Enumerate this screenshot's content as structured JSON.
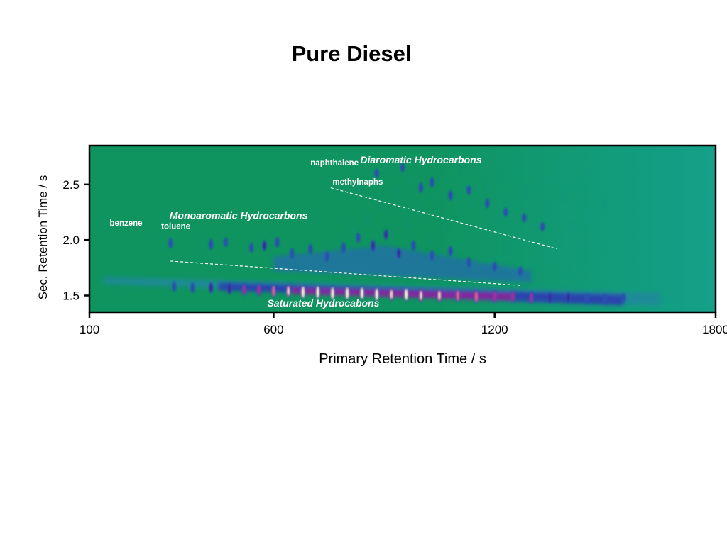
{
  "slide": {
    "title": "Pure Diesel"
  },
  "chart_data": {
    "type": "heatmap",
    "title": "Pure Diesel",
    "xlabel": "Primary Retention Time / s",
    "ylabel": "Sec. Retention Time / s",
    "xlim": [
      100,
      1800
    ],
    "ylim": [
      1.35,
      2.85
    ],
    "xticks": [
      100,
      600,
      1200,
      1800
    ],
    "yticks": [
      1.5,
      2.0,
      2.5
    ],
    "xtick_labels": [
      "100",
      "600",
      "1200",
      "1800"
    ],
    "ytick_labels": [
      "1.5",
      "2.0",
      "2.5"
    ],
    "grid": false,
    "colormap": [
      "#0f9460",
      "#1e8a9a",
      "#2a4fb0",
      "#3a1f9a",
      "#b0209a",
      "#f06088",
      "#fff6c0"
    ],
    "background_color": "#0f9460",
    "annotations": [
      {
        "text": "benzene",
        "x": 155,
        "y": 2.13,
        "style": "label"
      },
      {
        "text": "toluene",
        "x": 295,
        "y": 2.1,
        "style": "label"
      },
      {
        "text": "naphthalene",
        "x": 700,
        "y": 2.67,
        "style": "label"
      },
      {
        "text": "methylnaphs",
        "x": 760,
        "y": 2.5,
        "style": "label"
      },
      {
        "text": "Monoaromatic Hydrocarbons",
        "x": 505,
        "y": 2.19,
        "style": "region"
      },
      {
        "text": "Diaromatic Hydrocarbons",
        "x": 1000,
        "y": 2.69,
        "style": "region"
      },
      {
        "text": "Saturated Hydrocabons",
        "x": 735,
        "y": 1.4,
        "style": "region"
      }
    ],
    "divider_lines": [
      {
        "x": [
          320,
          1275
        ],
        "y": [
          1.81,
          1.59
        ]
      },
      {
        "x": [
          755,
          1370
        ],
        "y": [
          2.47,
          1.92
        ]
      }
    ],
    "series": [
      {
        "name": "Saturated Hydrocabons",
        "band": {
          "x_start": 140,
          "x_end": 1650,
          "y_start": 1.63,
          "y_end": 1.46
        },
        "peaks": [
          {
            "x": 330,
            "y": 1.58,
            "intensity": 0.45
          },
          {
            "x": 380,
            "y": 1.57,
            "intensity": 0.5
          },
          {
            "x": 430,
            "y": 1.57,
            "intensity": 0.55
          },
          {
            "x": 480,
            "y": 1.56,
            "intensity": 0.65
          },
          {
            "x": 520,
            "y": 1.55,
            "intensity": 0.7
          },
          {
            "x": 560,
            "y": 1.55,
            "intensity": 0.75
          },
          {
            "x": 600,
            "y": 1.54,
            "intensity": 0.85
          },
          {
            "x": 640,
            "y": 1.54,
            "intensity": 0.9
          },
          {
            "x": 680,
            "y": 1.53,
            "intensity": 0.95
          },
          {
            "x": 720,
            "y": 1.53,
            "intensity": 1.0
          },
          {
            "x": 760,
            "y": 1.52,
            "intensity": 1.0
          },
          {
            "x": 800,
            "y": 1.52,
            "intensity": 1.0
          },
          {
            "x": 840,
            "y": 1.52,
            "intensity": 0.95
          },
          {
            "x": 880,
            "y": 1.51,
            "intensity": 1.0
          },
          {
            "x": 920,
            "y": 1.51,
            "intensity": 0.9
          },
          {
            "x": 960,
            "y": 1.51,
            "intensity": 0.95
          },
          {
            "x": 1000,
            "y": 1.5,
            "intensity": 0.9
          },
          {
            "x": 1050,
            "y": 1.5,
            "intensity": 0.9
          },
          {
            "x": 1100,
            "y": 1.5,
            "intensity": 0.85
          },
          {
            "x": 1150,
            "y": 1.49,
            "intensity": 0.85
          },
          {
            "x": 1200,
            "y": 1.49,
            "intensity": 0.8
          },
          {
            "x": 1250,
            "y": 1.49,
            "intensity": 0.75
          },
          {
            "x": 1300,
            "y": 1.48,
            "intensity": 0.7
          },
          {
            "x": 1350,
            "y": 1.48,
            "intensity": 0.6
          },
          {
            "x": 1400,
            "y": 1.48,
            "intensity": 0.55
          },
          {
            "x": 1450,
            "y": 1.47,
            "intensity": 0.45
          },
          {
            "x": 1500,
            "y": 1.47,
            "intensity": 0.4
          },
          {
            "x": 1550,
            "y": 1.48,
            "intensity": 0.3
          }
        ]
      },
      {
        "name": "Monoaromatic Hydrocarbons",
        "peaks": [
          {
            "x": 320,
            "y": 1.97,
            "intensity": 0.4
          },
          {
            "x": 430,
            "y": 1.96,
            "intensity": 0.5
          },
          {
            "x": 470,
            "y": 1.98,
            "intensity": 0.35
          },
          {
            "x": 540,
            "y": 1.93,
            "intensity": 0.4
          },
          {
            "x": 575,
            "y": 1.95,
            "intensity": 0.55
          },
          {
            "x": 610,
            "y": 1.98,
            "intensity": 0.5
          },
          {
            "x": 650,
            "y": 1.88,
            "intensity": 0.5
          },
          {
            "x": 700,
            "y": 1.92,
            "intensity": 0.45
          },
          {
            "x": 745,
            "y": 1.85,
            "intensity": 0.5
          },
          {
            "x": 790,
            "y": 1.93,
            "intensity": 0.5
          },
          {
            "x": 830,
            "y": 2.02,
            "intensity": 0.45
          },
          {
            "x": 870,
            "y": 1.95,
            "intensity": 0.65
          },
          {
            "x": 905,
            "y": 2.05,
            "intensity": 0.55
          },
          {
            "x": 940,
            "y": 1.88,
            "intensity": 0.55
          },
          {
            "x": 980,
            "y": 1.95,
            "intensity": 0.5
          },
          {
            "x": 1030,
            "y": 1.86,
            "intensity": 0.5
          },
          {
            "x": 1080,
            "y": 1.9,
            "intensity": 0.45
          },
          {
            "x": 1130,
            "y": 1.8,
            "intensity": 0.45
          },
          {
            "x": 1200,
            "y": 1.76,
            "intensity": 0.4
          },
          {
            "x": 1270,
            "y": 1.72,
            "intensity": 0.35
          }
        ]
      },
      {
        "name": "Diaromatic Hydrocarbons",
        "peaks": [
          {
            "x": 880,
            "y": 2.6,
            "intensity": 0.3
          },
          {
            "x": 950,
            "y": 2.65,
            "intensity": 0.3
          },
          {
            "x": 1000,
            "y": 2.47,
            "intensity": 0.45
          },
          {
            "x": 1030,
            "y": 2.52,
            "intensity": 0.5
          },
          {
            "x": 1080,
            "y": 2.4,
            "intensity": 0.4
          },
          {
            "x": 1130,
            "y": 2.45,
            "intensity": 0.35
          },
          {
            "x": 1180,
            "y": 2.33,
            "intensity": 0.35
          },
          {
            "x": 1230,
            "y": 2.25,
            "intensity": 0.3
          },
          {
            "x": 1280,
            "y": 2.2,
            "intensity": 0.3
          },
          {
            "x": 1330,
            "y": 2.12,
            "intensity": 0.3
          }
        ]
      }
    ]
  }
}
